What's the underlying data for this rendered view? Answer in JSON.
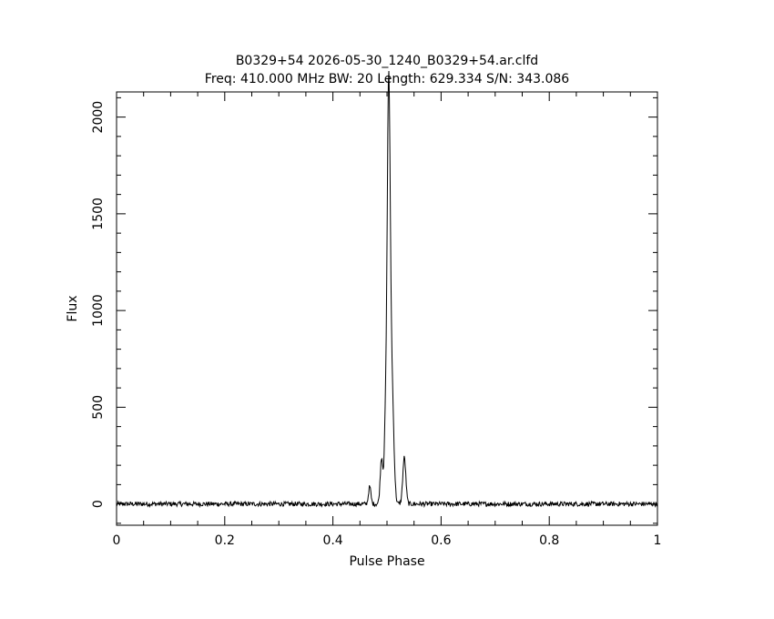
{
  "chart_data": {
    "type": "line",
    "title": "B0329+54 2026-05-30_1240_B0329+54.ar.clfd",
    "subtitle": "Freq: 410.000 MHz BW: 20 Length: 629.334 S/N: 343.086",
    "xlabel": "Pulse Phase",
    "ylabel": "Flux",
    "xlim": [
      0,
      1
    ],
    "ylim": [
      -110,
      2130
    ],
    "xticks": [
      0,
      0.2,
      0.4,
      0.6,
      0.8,
      1
    ],
    "xtick_labels": [
      "0",
      "0.2",
      "0.4",
      "0.6",
      "0.8",
      "1"
    ],
    "yticks": [
      0,
      500,
      1000,
      1500,
      2000
    ],
    "ytick_labels": [
      "0",
      "500",
      "1000",
      "1500",
      "2000"
    ],
    "grid": false,
    "noise_level": 12,
    "series": [
      {
        "peaks": [
          {
            "x": 0.468,
            "y": 90
          },
          {
            "x": 0.49,
            "y": 240
          },
          {
            "x": 0.497,
            "y": 350
          },
          {
            "x": 0.503,
            "y": 2090
          },
          {
            "x": 0.509,
            "y": 600
          },
          {
            "x": 0.532,
            "y": 240
          }
        ],
        "baseline": 0
      }
    ]
  }
}
